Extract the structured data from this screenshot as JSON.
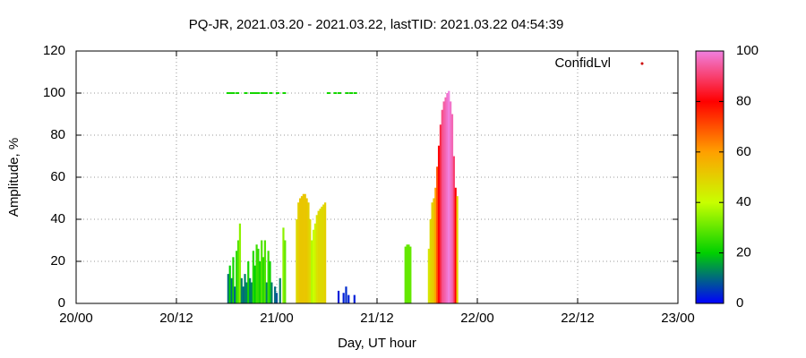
{
  "chart_data": {
    "type": "impulse",
    "title": "PQ-JR, 2021.03.20 - 2021.03.22, lastTID: 2021.03.22 04:54:39",
    "x_label": "Day, UT hour",
    "y_label": "Amplitude, %",
    "xlim": [
      0,
      72
    ],
    "xticks": [
      {
        "value": 0,
        "label": "20/00"
      },
      {
        "value": 12,
        "label": "20/12"
      },
      {
        "value": 24,
        "label": "21/00"
      },
      {
        "value": 36,
        "label": "21/12"
      },
      {
        "value": 48,
        "label": "22/00"
      },
      {
        "value": 60,
        "label": "22/12"
      },
      {
        "value": 72,
        "label": "23/00"
      }
    ],
    "ylim": [
      0,
      120
    ],
    "yticks": [
      0,
      20,
      40,
      60,
      80,
      100,
      120
    ],
    "grid": true,
    "legend_position": "top-right",
    "cblim": [
      0,
      100
    ],
    "cbticks": [
      0,
      20,
      40,
      60,
      80,
      100
    ],
    "palette": [
      "#0000ff",
      "#00d000",
      "#c8ff00",
      "#ffa000",
      "#ff0000",
      "#f080e0"
    ],
    "series": [
      {
        "name": "ConfidLvl",
        "color": "#cc0000",
        "style": "impulse",
        "x": [
          18.2,
          18.4,
          18.6,
          18.8,
          19.0,
          19.2,
          19.4,
          19.6,
          19.8,
          20.0,
          20.2,
          20.4,
          20.6,
          20.8,
          21.0,
          21.2,
          21.4,
          21.6,
          21.8,
          22.0,
          22.2,
          22.4,
          22.6,
          22.8,
          23.0,
          23.2,
          23.4,
          23.8,
          24.0,
          24.4,
          24.8,
          25.0,
          26.4,
          26.6,
          26.8,
          27.0,
          27.2,
          27.4,
          27.6,
          27.8,
          28.0,
          28.2,
          28.4,
          28.6,
          28.8,
          29.0,
          29.2,
          29.4,
          29.6,
          29.8,
          31.4,
          32.0,
          32.3,
          32.6,
          33.3,
          39.4,
          39.6,
          39.8,
          40.0,
          42.2,
          42.4,
          42.6,
          42.8,
          43.0,
          43.2,
          43.4,
          43.6,
          43.8,
          44.0,
          44.2,
          44.4,
          44.6,
          44.8,
          45.0,
          45.2,
          45.4,
          45.6
        ],
        "values": [
          14,
          18,
          12,
          22,
          8,
          25,
          30,
          38,
          12,
          8,
          14,
          10,
          20,
          12,
          10,
          25,
          18,
          28,
          26,
          20,
          30,
          22,
          30,
          10,
          25,
          20,
          10,
          8,
          5,
          12,
          36,
          30,
          40,
          48,
          50,
          51,
          52,
          52,
          50,
          48,
          40,
          30,
          35,
          38,
          42,
          44,
          45,
          46,
          47,
          48,
          6,
          5,
          8,
          4,
          4,
          27,
          28,
          28,
          27,
          26,
          40,
          48,
          50,
          55,
          65,
          75,
          85,
          92,
          96,
          98,
          100,
          101,
          96,
          90,
          70,
          55,
          51
        ],
        "confid": [
          10,
          20,
          10,
          22,
          8,
          24,
          28,
          34,
          12,
          10,
          12,
          12,
          22,
          12,
          12,
          24,
          20,
          26,
          25,
          22,
          28,
          24,
          28,
          12,
          26,
          22,
          12,
          10,
          8,
          12,
          34,
          30,
          48,
          50,
          52,
          52,
          52,
          52,
          52,
          50,
          48,
          38,
          40,
          42,
          46,
          48,
          48,
          48,
          48,
          50,
          3,
          3,
          4,
          3,
          3,
          30,
          30,
          30,
          30,
          45,
          48,
          50,
          52,
          60,
          70,
          80,
          86,
          92,
          94,
          96,
          98,
          100,
          98,
          96,
          90,
          80,
          50
        ]
      },
      {
        "style": "points",
        "x": [
          18.2,
          18.5,
          18.8,
          19.3,
          20.3,
          21.0,
          21.4,
          21.8,
          22.3,
          22.7,
          23.3,
          24.1,
          24.9,
          30.2,
          31.0,
          31.5,
          32.4,
          32.9,
          33.4
        ],
        "values": [
          100,
          100,
          100,
          100,
          100,
          100,
          100,
          100,
          100,
          100,
          100,
          100,
          100,
          100,
          100,
          100,
          100,
          100,
          100
        ],
        "confid": [
          22,
          22,
          22,
          22,
          22,
          22,
          22,
          22,
          22,
          22,
          22,
          22,
          22,
          22,
          22,
          22,
          22,
          22,
          22
        ]
      }
    ]
  }
}
